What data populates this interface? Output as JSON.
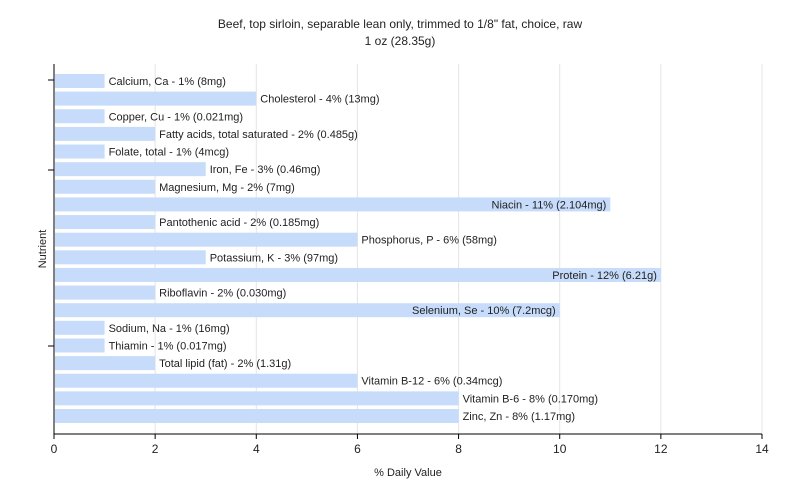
{
  "chart_data": {
    "type": "bar",
    "orientation": "horizontal",
    "title": "Beef, top sirloin, separable lean only, trimmed to 1/8\" fat, choice, raw",
    "subtitle": "1 oz (28.35g)",
    "xlabel": "% Daily Value",
    "ylabel": "Nutrient",
    "xlim": [
      0,
      14
    ],
    "xticks": [
      0,
      2,
      4,
      6,
      8,
      10,
      12,
      14
    ],
    "grid": true,
    "bar_color": "#c6dcfa",
    "categories": [
      "Calcium, Ca",
      "Cholesterol",
      "Copper, Cu",
      "Fatty acids, total saturated",
      "Folate, total",
      "Iron, Fe",
      "Magnesium, Mg",
      "Niacin",
      "Pantothenic acid",
      "Phosphorus, P",
      "Potassium, K",
      "Protein",
      "Riboflavin",
      "Selenium, Se",
      "Sodium, Na",
      "Thiamin",
      "Total lipid (fat)",
      "Vitamin B-12",
      "Vitamin B-6",
      "Zinc, Zn"
    ],
    "values": [
      1,
      4,
      1,
      2,
      1,
      3,
      2,
      11,
      2,
      6,
      3,
      12,
      2,
      10,
      1,
      1,
      2,
      6,
      8,
      8
    ],
    "labels": [
      "Calcium, Ca - 1% (8mg)",
      "Cholesterol - 4% (13mg)",
      "Copper, Cu - 1% (0.021mg)",
      "Fatty acids, total saturated - 2% (0.485g)",
      "Folate, total - 1% (4mcg)",
      "Iron, Fe - 3% (0.46mg)",
      "Magnesium, Mg - 2% (7mg)",
      "Niacin - 11% (2.104mg)",
      "Pantothenic acid - 2% (0.185mg)",
      "Phosphorus, P - 6% (58mg)",
      "Potassium, K - 3% (97mg)",
      "Protein - 12% (6.21g)",
      "Riboflavin - 2% (0.030mg)",
      "Selenium, Se - 10% (7.2mcg)",
      "Sodium, Na - 1% (16mg)",
      "Thiamin - 1% (0.017mg)",
      "Total lipid (fat) - 2% (1.31g)",
      "Vitamin B-12 - 6% (0.34mcg)",
      "Vitamin B-6 - 8% (0.170mg)",
      "Zinc, Zn - 8% (1.17mg)"
    ]
  }
}
